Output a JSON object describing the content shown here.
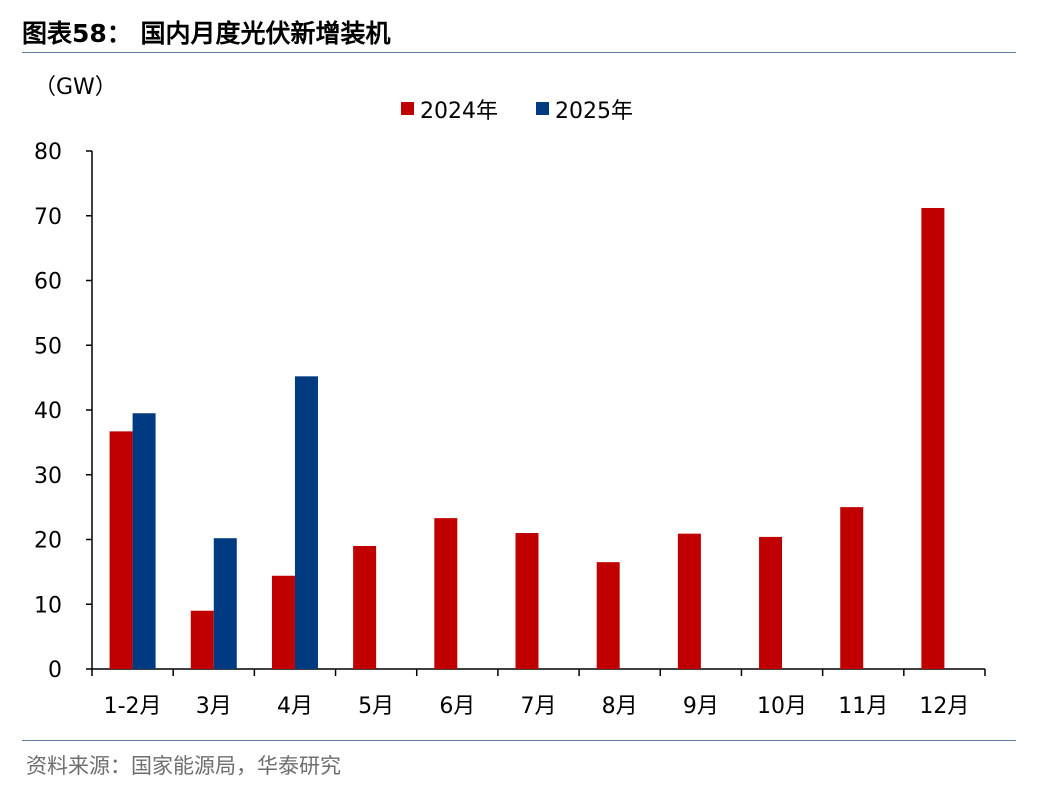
{
  "header": {
    "title": "图表58：  国内月度光伏新增装机"
  },
  "footer": {
    "source": "资料来源：国家能源局，华泰研究"
  },
  "colors": {
    "series_2024": "#c00000",
    "series_2025": "#003a80",
    "rule": "#5b7aa6"
  },
  "chart_data": {
    "type": "bar",
    "unit_label": "（GW）",
    "legend_position": "top-center",
    "grid": false,
    "ylim": [
      0,
      80
    ],
    "yticks": [
      "0",
      "10",
      "20",
      "30",
      "40",
      "50",
      "60",
      "70",
      "80"
    ],
    "categories": [
      "1-2月",
      "3月",
      "4月",
      "5月",
      "6月",
      "7月",
      "8月",
      "9月",
      "10月",
      "11月",
      "12月"
    ],
    "series": [
      {
        "name": "2024年",
        "color": "#c00000",
        "values": [
          36.7,
          9.0,
          14.4,
          19.0,
          23.3,
          21.0,
          16.5,
          20.9,
          20.4,
          25.0,
          71.2
        ]
      },
      {
        "name": "2025年",
        "color": "#003a80",
        "values": [
          39.5,
          20.2,
          45.2,
          null,
          null,
          null,
          null,
          null,
          null,
          null,
          null
        ]
      }
    ]
  }
}
